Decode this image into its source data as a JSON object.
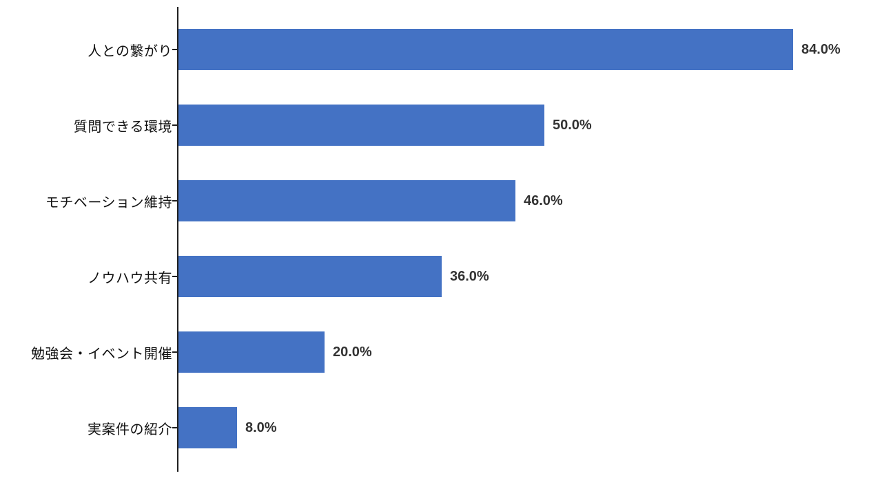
{
  "chart_data": {
    "type": "bar",
    "orientation": "horizontal",
    "title": "",
    "xlabel": "",
    "ylabel": "",
    "xlim": [
      0,
      100
    ],
    "grid": false,
    "legend": false,
    "bar_color": "#4472C4",
    "axis_color": "#1f1f1f",
    "categories": [
      "人との繋がり",
      "質問できる環境",
      "モチベーション維持",
      "ノウハウ共有",
      "勉強会・イベント開催",
      "実案件の紹介"
    ],
    "values": [
      84.0,
      50.0,
      46.0,
      36.0,
      20.0,
      8.0
    ],
    "value_labels": [
      "84.0%",
      "50.0%",
      "46.0%",
      "36.0%",
      "20.0%",
      "8.0%"
    ]
  }
}
